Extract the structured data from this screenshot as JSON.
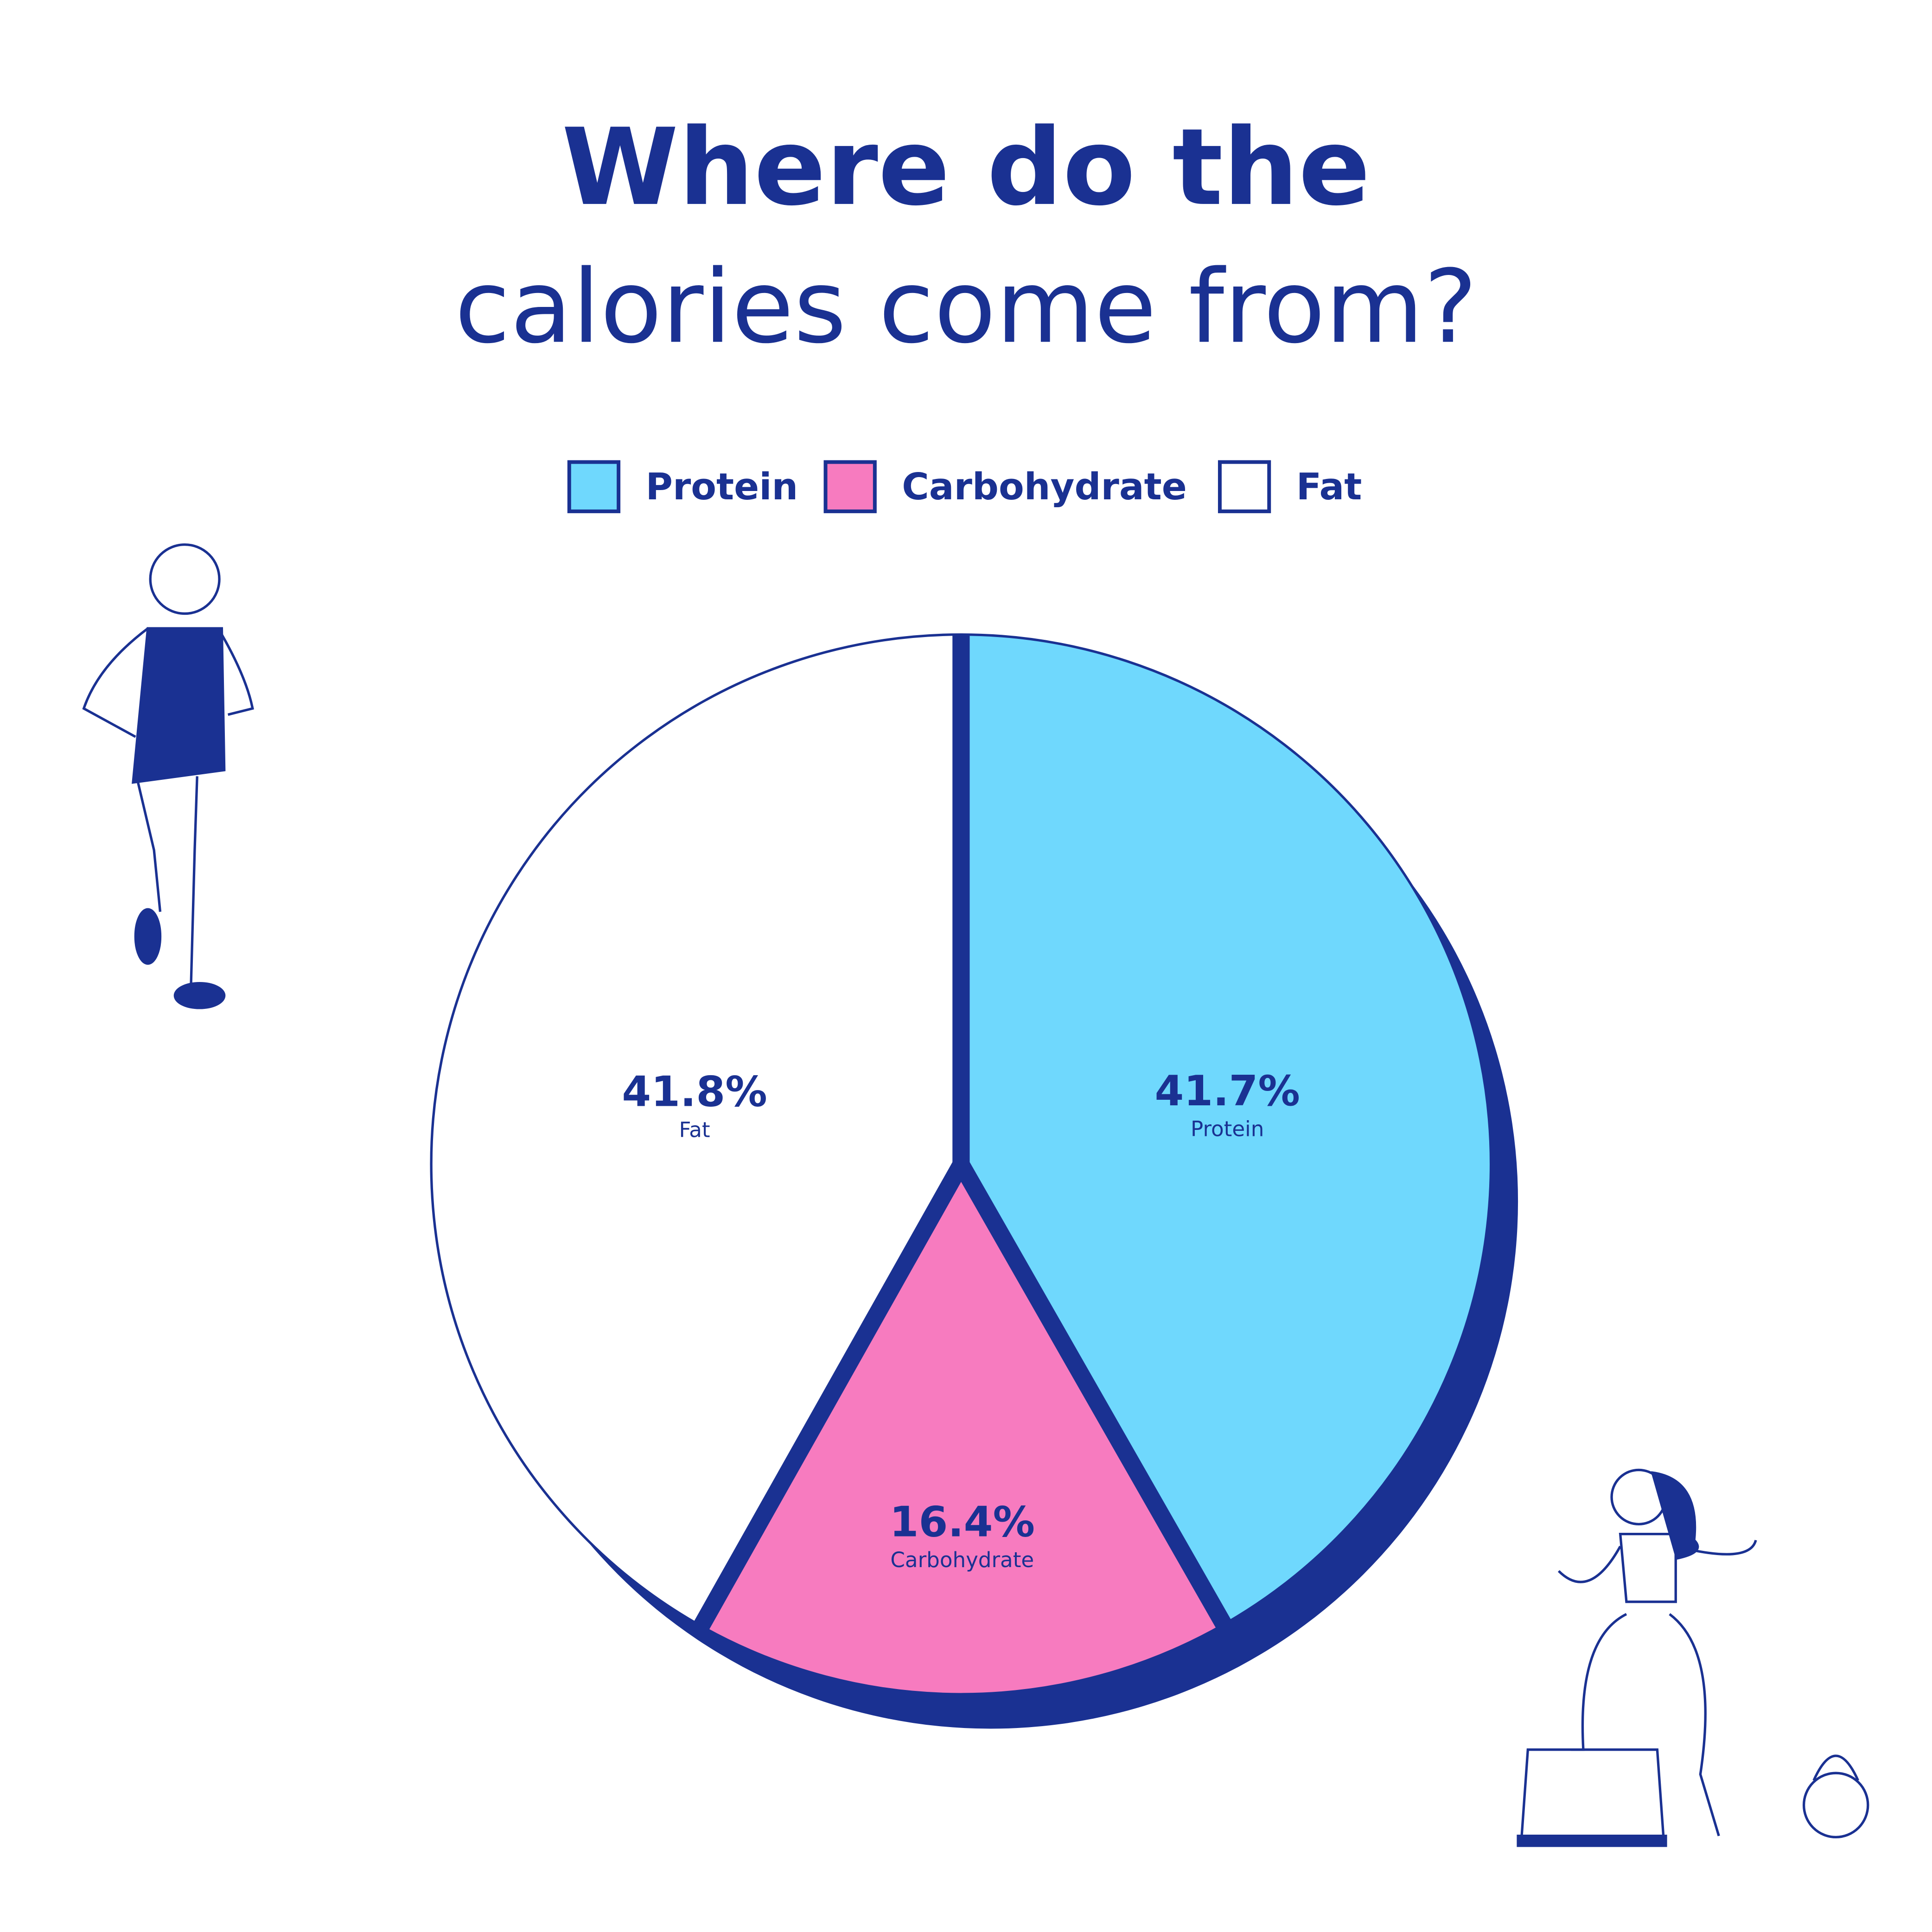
{
  "chart_data": {
    "type": "pie",
    "title": "Where do the",
    "subtitle": "calories come from?",
    "categories": [
      "Protein",
      "Carbohydrate",
      "Fat"
    ],
    "values": [
      41.7,
      16.4,
      41.8
    ],
    "value_labels": [
      "41.7%",
      "16.4%",
      "41.8%"
    ],
    "colors": [
      "#6fd8fd",
      "#f77bbf",
      "#ffffff"
    ],
    "legend": "top"
  }
}
